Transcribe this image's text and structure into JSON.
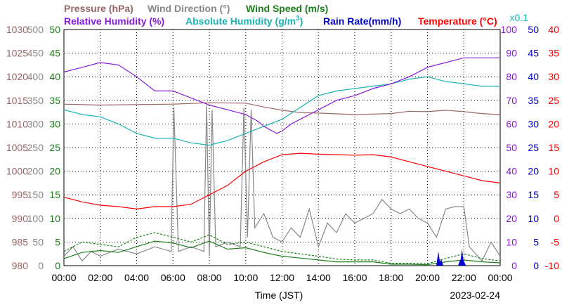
{
  "chart_data": {
    "type": "line",
    "legend_row1": [
      {
        "label": "Pressure (hPa)",
        "color": "#996666"
      },
      {
        "label": "Wind Direction (°)",
        "color": "#888888"
      },
      {
        "label": "Wind Speed (m/s)",
        "color": "#1a7f1a"
      }
    ],
    "legend_row2": [
      {
        "label": "Relative Humidity (%)",
        "color": "#8a1adb"
      },
      {
        "label": "Absolute Humidity (g/m",
        "sup": "3",
        "tail": ")",
        "color": "#1ab3b3"
      },
      {
        "label": "Rain Rate(mm/h)",
        "color": "#0000cc"
      },
      {
        "label": "Temperature (°C)",
        "color": "#ff0000"
      }
    ],
    "scale_note": "x0.1",
    "xlabel": "Time (JST)",
    "date": "2023-02-24",
    "x_ticks": [
      "00:00",
      "02:00",
      "04:00",
      "06:00",
      "08:00",
      "10:00",
      "12:00",
      "14:00",
      "16:00",
      "18:00",
      "20:00",
      "22:00",
      "00:00"
    ],
    "axes": {
      "pressure": {
        "color": "#996666",
        "min": 980,
        "max": 1030,
        "ticks": [
          980,
          985,
          990,
          995,
          1000,
          1005,
          1010,
          1015,
          1020,
          1025,
          1030
        ]
      },
      "wind_direction": {
        "color": "#888888",
        "min": 0,
        "max": 500,
        "ticks": [
          0,
          50,
          100,
          150,
          200,
          250,
          300,
          350,
          400,
          450,
          500
        ]
      },
      "wind_speed": {
        "color": "#1a7f1a",
        "min": 0,
        "max": 50,
        "ticks": [
          0,
          5,
          10,
          15,
          20,
          25,
          30,
          35,
          40,
          45,
          50
        ]
      },
      "humidity_pct": {
        "color": "#8a1adb",
        "min": 0,
        "max": 100,
        "ticks": [
          0,
          10,
          20,
          30,
          40,
          50,
          60,
          70,
          80,
          90,
          100
        ]
      },
      "rain_rate": {
        "color": "#0000cc",
        "min": 0,
        "max": 50,
        "ticks": [
          0,
          5,
          10,
          15,
          20,
          25,
          30,
          35,
          40,
          45,
          50
        ]
      },
      "temperature": {
        "color": "#ff0000",
        "min": -10,
        "max": 40,
        "ticks": [
          -10,
          -5,
          0,
          5,
          10,
          15,
          20,
          25,
          30,
          35,
          40
        ]
      }
    },
    "series": [
      {
        "name": "Pressure (hPa)",
        "axis": "pressure",
        "color": "#996666",
        "points": [
          [
            0,
            1014.2
          ],
          [
            2,
            1014.0
          ],
          [
            4,
            1014.1
          ],
          [
            6,
            1014.2
          ],
          [
            8,
            1014.5
          ],
          [
            10,
            1014.4
          ],
          [
            11,
            1013.6
          ],
          [
            12,
            1012.9
          ],
          [
            13,
            1012.4
          ],
          [
            14,
            1012.3
          ],
          [
            16,
            1012.0
          ],
          [
            18,
            1012.2
          ],
          [
            19,
            1012.7
          ],
          [
            20,
            1012.6
          ],
          [
            21,
            1012.9
          ],
          [
            22,
            1012.6
          ],
          [
            23,
            1012.2
          ],
          [
            24,
            1012.0
          ]
        ]
      },
      {
        "name": "Relative Humidity (%)",
        "axis": "humidity_pct",
        "color": "#8a1adb",
        "points": [
          [
            0,
            82
          ],
          [
            1,
            84
          ],
          [
            2,
            86
          ],
          [
            3,
            85
          ],
          [
            4,
            80
          ],
          [
            5,
            74
          ],
          [
            6,
            74
          ],
          [
            7,
            71
          ],
          [
            8,
            68
          ],
          [
            9,
            66
          ],
          [
            10,
            64
          ],
          [
            10.7,
            61
          ],
          [
            11,
            59
          ],
          [
            11.7,
            56
          ],
          [
            12,
            57
          ],
          [
            12.5,
            60
          ],
          [
            13,
            62
          ],
          [
            13.5,
            64
          ],
          [
            14,
            66
          ],
          [
            15,
            70
          ],
          [
            16,
            72
          ],
          [
            17,
            75
          ],
          [
            18,
            77
          ],
          [
            19,
            80
          ],
          [
            20,
            84
          ],
          [
            21,
            86
          ],
          [
            22,
            88
          ],
          [
            23,
            88
          ],
          [
            24,
            88
          ]
        ]
      },
      {
        "name": "Absolute Humidity (g/m3)",
        "axis": "humidity_pct",
        "color": "#1ab3b3",
        "points": [
          [
            0,
            66
          ],
          [
            1,
            64
          ],
          [
            2,
            63
          ],
          [
            3,
            60
          ],
          [
            4,
            56
          ],
          [
            5,
            54
          ],
          [
            6,
            54
          ],
          [
            7,
            52
          ],
          [
            8,
            51
          ],
          [
            9,
            53
          ],
          [
            10,
            56
          ],
          [
            11,
            59
          ],
          [
            12,
            62
          ],
          [
            13,
            67
          ],
          [
            14,
            72
          ],
          [
            15,
            74
          ],
          [
            16,
            75
          ],
          [
            17,
            76
          ],
          [
            18,
            77
          ],
          [
            19,
            79
          ],
          [
            20,
            80
          ],
          [
            21,
            78
          ],
          [
            22,
            77
          ],
          [
            23,
            76
          ],
          [
            24,
            76
          ]
        ]
      },
      {
        "name": "Temperature (°C)",
        "axis": "temperature",
        "color": "#ff0000",
        "points": [
          [
            0,
            4.5
          ],
          [
            1,
            3.5
          ],
          [
            2,
            2.8
          ],
          [
            3,
            2.5
          ],
          [
            4,
            2.0
          ],
          [
            5,
            2.5
          ],
          [
            6,
            2.5
          ],
          [
            7,
            3.0
          ],
          [
            8,
            5.0
          ],
          [
            9,
            7.0
          ],
          [
            10,
            10.0
          ],
          [
            11,
            12.0
          ],
          [
            12,
            13.5
          ],
          [
            13,
            13.8
          ],
          [
            14,
            13.6
          ],
          [
            15,
            13.5
          ],
          [
            16,
            13.4
          ],
          [
            17,
            13.5
          ],
          [
            18,
            13.0
          ],
          [
            19,
            12.0
          ],
          [
            20,
            11.0
          ],
          [
            21,
            10.0
          ],
          [
            22,
            9.0
          ],
          [
            23,
            8.0
          ],
          [
            24,
            7.5
          ]
        ]
      },
      {
        "name": "Wind Direction (°)",
        "axis": "wind_direction",
        "color": "#888888",
        "points": [
          [
            0,
            20
          ],
          [
            0.5,
            40
          ],
          [
            1,
            10
          ],
          [
            1.5,
            30
          ],
          [
            2,
            20
          ],
          [
            3,
            35
          ],
          [
            4,
            25
          ],
          [
            5,
            40
          ],
          [
            5.9,
            30
          ],
          [
            6.05,
            335
          ],
          [
            6.3,
            30
          ],
          [
            7,
            40
          ],
          [
            7.7,
            30
          ],
          [
            7.85,
            340
          ],
          [
            8.0,
            20
          ],
          [
            8.15,
            330
          ],
          [
            8.35,
            40
          ],
          [
            9,
            50
          ],
          [
            9.7,
            40
          ],
          [
            9.9,
            335
          ],
          [
            10.1,
            60
          ],
          [
            10.3,
            330
          ],
          [
            10.5,
            80
          ],
          [
            11,
            110
          ],
          [
            11.5,
            60
          ],
          [
            12,
            50
          ],
          [
            12.5,
            80
          ],
          [
            13,
            60
          ],
          [
            13.5,
            120
          ],
          [
            14,
            40
          ],
          [
            14.5,
            90
          ],
          [
            15,
            70
          ],
          [
            15.5,
            110
          ],
          [
            16,
            90
          ],
          [
            16.5,
            100
          ],
          [
            17,
            110
          ],
          [
            17.5,
            140
          ],
          [
            18,
            120
          ],
          [
            18.5,
            110
          ],
          [
            19,
            120
          ],
          [
            19.5,
            100
          ],
          [
            20,
            90
          ],
          [
            20.5,
            60
          ],
          [
            21,
            120
          ],
          [
            21.5,
            125
          ],
          [
            22,
            125
          ],
          [
            22.3,
            40
          ],
          [
            23,
            10
          ],
          [
            23.5,
            50
          ],
          [
            24,
            20
          ]
        ]
      },
      {
        "name": "Wind Speed (m/s)",
        "axis": "wind_speed",
        "color": "#1a7f1a",
        "points": [
          [
            0,
            1.5
          ],
          [
            1,
            2.8
          ],
          [
            2,
            3.2
          ],
          [
            3,
            2.8
          ],
          [
            4,
            4.0
          ],
          [
            5,
            5.2
          ],
          [
            6,
            4.8
          ],
          [
            7,
            3.8
          ],
          [
            8,
            5.2
          ],
          [
            9,
            3.5
          ],
          [
            10,
            3.8
          ],
          [
            11,
            2.8
          ],
          [
            12,
            2.0
          ],
          [
            13,
            1.6
          ],
          [
            14,
            1.2
          ],
          [
            15,
            0.8
          ],
          [
            16,
            0.8
          ],
          [
            17,
            0.8
          ],
          [
            18,
            0.3
          ],
          [
            19,
            0.3
          ],
          [
            20,
            0.2
          ],
          [
            21,
            0.8
          ],
          [
            22,
            1.2
          ],
          [
            23,
            0.8
          ],
          [
            24,
            0.6
          ]
        ]
      },
      {
        "name": "Wind Speed gust",
        "axis": "wind_speed",
        "color": "#1a7f1a",
        "dash": true,
        "points": [
          [
            0,
            3.0
          ],
          [
            1,
            5.0
          ],
          [
            2,
            4.5
          ],
          [
            3,
            4.0
          ],
          [
            4,
            6.0
          ],
          [
            5,
            7.0
          ],
          [
            6,
            6.0
          ],
          [
            7,
            5.0
          ],
          [
            8,
            6.5
          ],
          [
            9,
            4.5
          ],
          [
            10,
            5.0
          ],
          [
            11,
            4.0
          ],
          [
            12,
            3.0
          ],
          [
            13,
            2.5
          ],
          [
            14,
            2.0
          ],
          [
            15,
            1.4
          ],
          [
            16,
            1.2
          ],
          [
            17,
            1.2
          ],
          [
            18,
            0.5
          ],
          [
            19,
            0.5
          ],
          [
            20,
            0.4
          ],
          [
            21,
            1.5
          ],
          [
            22,
            2.5
          ],
          [
            23,
            1.5
          ],
          [
            24,
            1.0
          ]
        ]
      },
      {
        "name": "Rain Rate (mm/h)",
        "axis": "rain_rate",
        "color": "#0000cc",
        "bars": true,
        "points": [
          [
            20.6,
            3.0
          ],
          [
            20.75,
            1.5
          ],
          [
            21.8,
            1.2
          ],
          [
            21.9,
            3.5
          ],
          [
            22.0,
            1.0
          ]
        ]
      }
    ]
  }
}
